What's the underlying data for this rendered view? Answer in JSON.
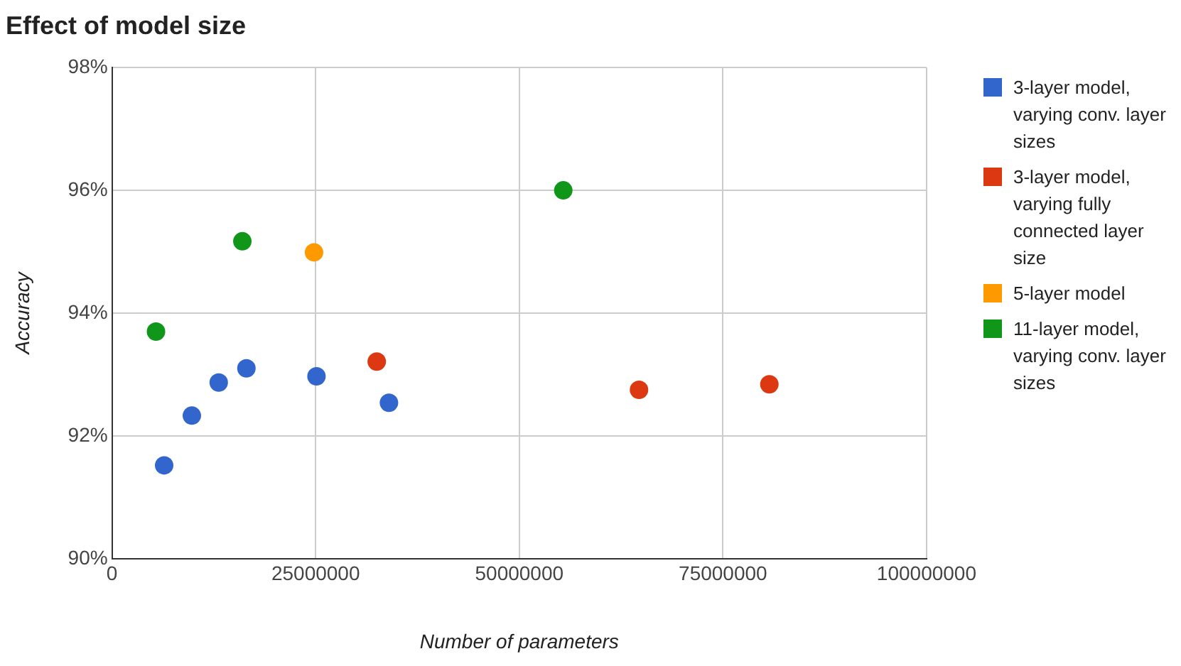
{
  "chart_data": {
    "type": "scatter",
    "title": "Effect of model size",
    "xlabel": "Number of parameters",
    "ylabel": "Accuracy",
    "xlim": [
      0,
      100000000
    ],
    "xticks": [
      0,
      25000000,
      50000000,
      75000000,
      100000000
    ],
    "ylim": [
      90,
      98
    ],
    "yticks": [
      {
        "value": 90,
        "label": "90%"
      },
      {
        "value": 92,
        "label": "92%"
      },
      {
        "value": 94,
        "label": "94%"
      },
      {
        "value": 96,
        "label": "96%"
      },
      {
        "value": 98,
        "label": "98%"
      }
    ],
    "grid": true,
    "legend": "right",
    "marker": "circle",
    "series": [
      {
        "name": "3-layer model, varying conv. layer sizes",
        "color": "#3366cc",
        "x": [
          6400000,
          9800000,
          13100000,
          16500000,
          25100000,
          34000000
        ],
        "values": [
          91.52,
          92.33,
          92.87,
          93.1,
          92.97,
          92.54
        ]
      },
      {
        "name": "3-layer model, varying fully connected layer size",
        "color": "#dc3912",
        "x": [
          32500000,
          64700000,
          80700000
        ],
        "values": [
          93.21,
          92.75,
          92.84
        ]
      },
      {
        "name": "5-layer model",
        "color": "#ff9900",
        "x": [
          24800000
        ],
        "values": [
          94.99
        ]
      },
      {
        "name": "11-layer model, varying conv. layer sizes",
        "color": "#109618",
        "x": [
          5400000,
          16000000,
          55400000
        ],
        "values": [
          93.7,
          95.17,
          96.0
        ]
      }
    ]
  }
}
